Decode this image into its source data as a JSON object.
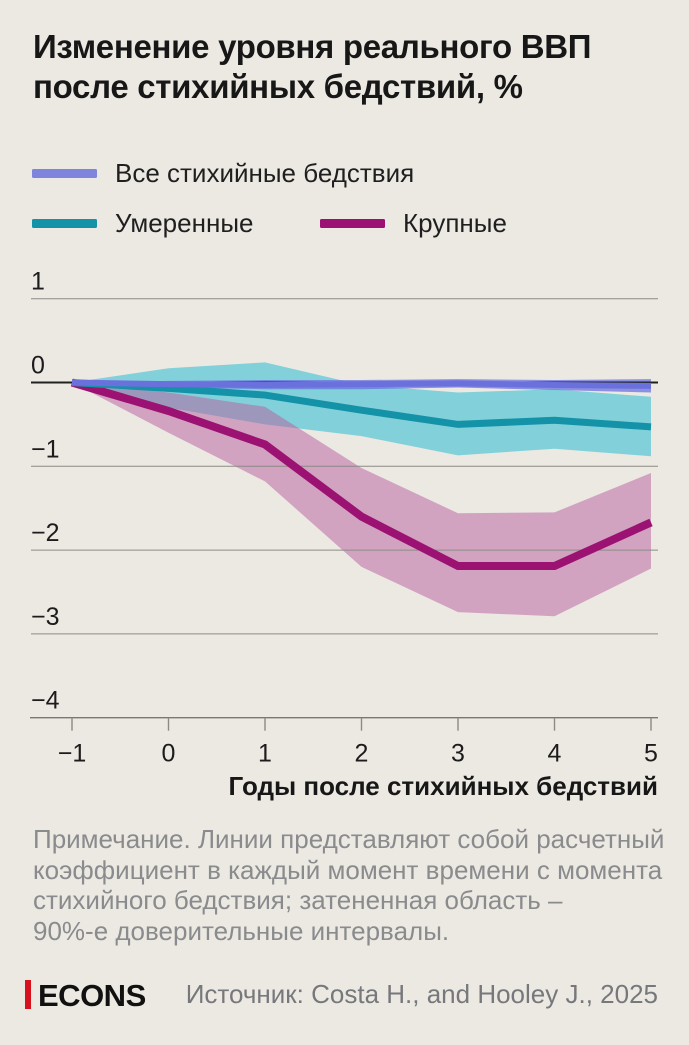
{
  "title_lines": [
    "Изменение уровня реального ВВП",
    "после стихийных бедствий, %"
  ],
  "legend": {
    "items": [
      {
        "label": "Все стихийные бедствия",
        "color": "#7f84dd"
      },
      {
        "label": "Умеренные",
        "color": "#1492a8"
      },
      {
        "label": "Крупные",
        "color": "#9b1273"
      }
    ]
  },
  "chart_data": {
    "type": "line",
    "title": "Изменение уровня реального ВВП после стихийных бедствий, %",
    "xlabel": "Годы после стихийных бедствий",
    "ylabel": "",
    "x": [
      -1,
      0,
      1,
      2,
      3,
      4,
      5
    ],
    "x_tick_labels": [
      "−1",
      "0",
      "1",
      "2",
      "3",
      "4",
      "5"
    ],
    "ylim": [
      -4,
      1
    ],
    "y_gridlines": [
      1,
      0,
      -1,
      -2,
      -3
    ],
    "y_ticks": [
      1,
      0,
      -1,
      -2,
      -3,
      -4
    ],
    "y_tick_labels": [
      "1",
      "0",
      "−1",
      "−2",
      "−3",
      "−4"
    ],
    "band_meaning": "90% confidence interval",
    "series": [
      {
        "id": "all-disasters",
        "name": "Все стихийные бедствия",
        "color": "#6b71dc",
        "band_color": "rgba(108,114,223,0.75)",
        "line_width": 6,
        "values": [
          0,
          -0.02,
          -0.03,
          -0.02,
          -0.01,
          -0.03,
          -0.04
        ],
        "upper": [
          0,
          0.02,
          0.03,
          0.03,
          0.04,
          0.03,
          0.04
        ],
        "lower": [
          0,
          -0.06,
          -0.08,
          -0.08,
          -0.06,
          -0.09,
          -0.12
        ]
      },
      {
        "id": "moderate",
        "name": "Умеренные",
        "color": "#1492a8",
        "band_color": "rgba(79,198,214,0.68)",
        "line_width": 7,
        "values": [
          0,
          -0.07,
          -0.15,
          -0.33,
          -0.5,
          -0.45,
          -0.53
        ],
        "upper": [
          0,
          0.17,
          0.24,
          -0.03,
          -0.12,
          -0.08,
          -0.17
        ],
        "lower": [
          0,
          -0.3,
          -0.5,
          -0.64,
          -0.87,
          -0.79,
          -0.88
        ]
      },
      {
        "id": "large",
        "name": "Крупные",
        "color": "#9b1273",
        "band_color": "rgba(184,94,158,0.5)",
        "line_width": 8,
        "values": [
          0,
          -0.34,
          -0.74,
          -1.6,
          -2.19,
          -2.19,
          -1.67
        ],
        "upper": [
          0,
          -0.12,
          -0.29,
          -1.02,
          -1.56,
          -1.55,
          -1.08
        ],
        "lower": [
          0,
          -0.6,
          -1.18,
          -2.2,
          -2.74,
          -2.79,
          -2.22
        ]
      }
    ],
    "legend_position": "top"
  },
  "x_axis_title": "Годы после стихийных бедствий",
  "note_lines": [
    "Примечание. Линии представляют собой расчетный",
    "коэффициент в каждый момент времени с момента",
    "стихийного бедствия; затененная область –",
    "90%-е доверительные интервалы."
  ],
  "footer": {
    "logo_text": "ECONS",
    "logo_accent_color": "#d6121f",
    "source": "Источник: Costa H., and Hooley J., 2025"
  },
  "colors": {
    "background": "#ece9e3",
    "gridline": "#8b8a85",
    "zero_line": "#21211f",
    "axis_line": "#787772",
    "tick_label": "#1c1c1c",
    "note_text": "#8a8b8d",
    "source_text": "#77787b"
  }
}
